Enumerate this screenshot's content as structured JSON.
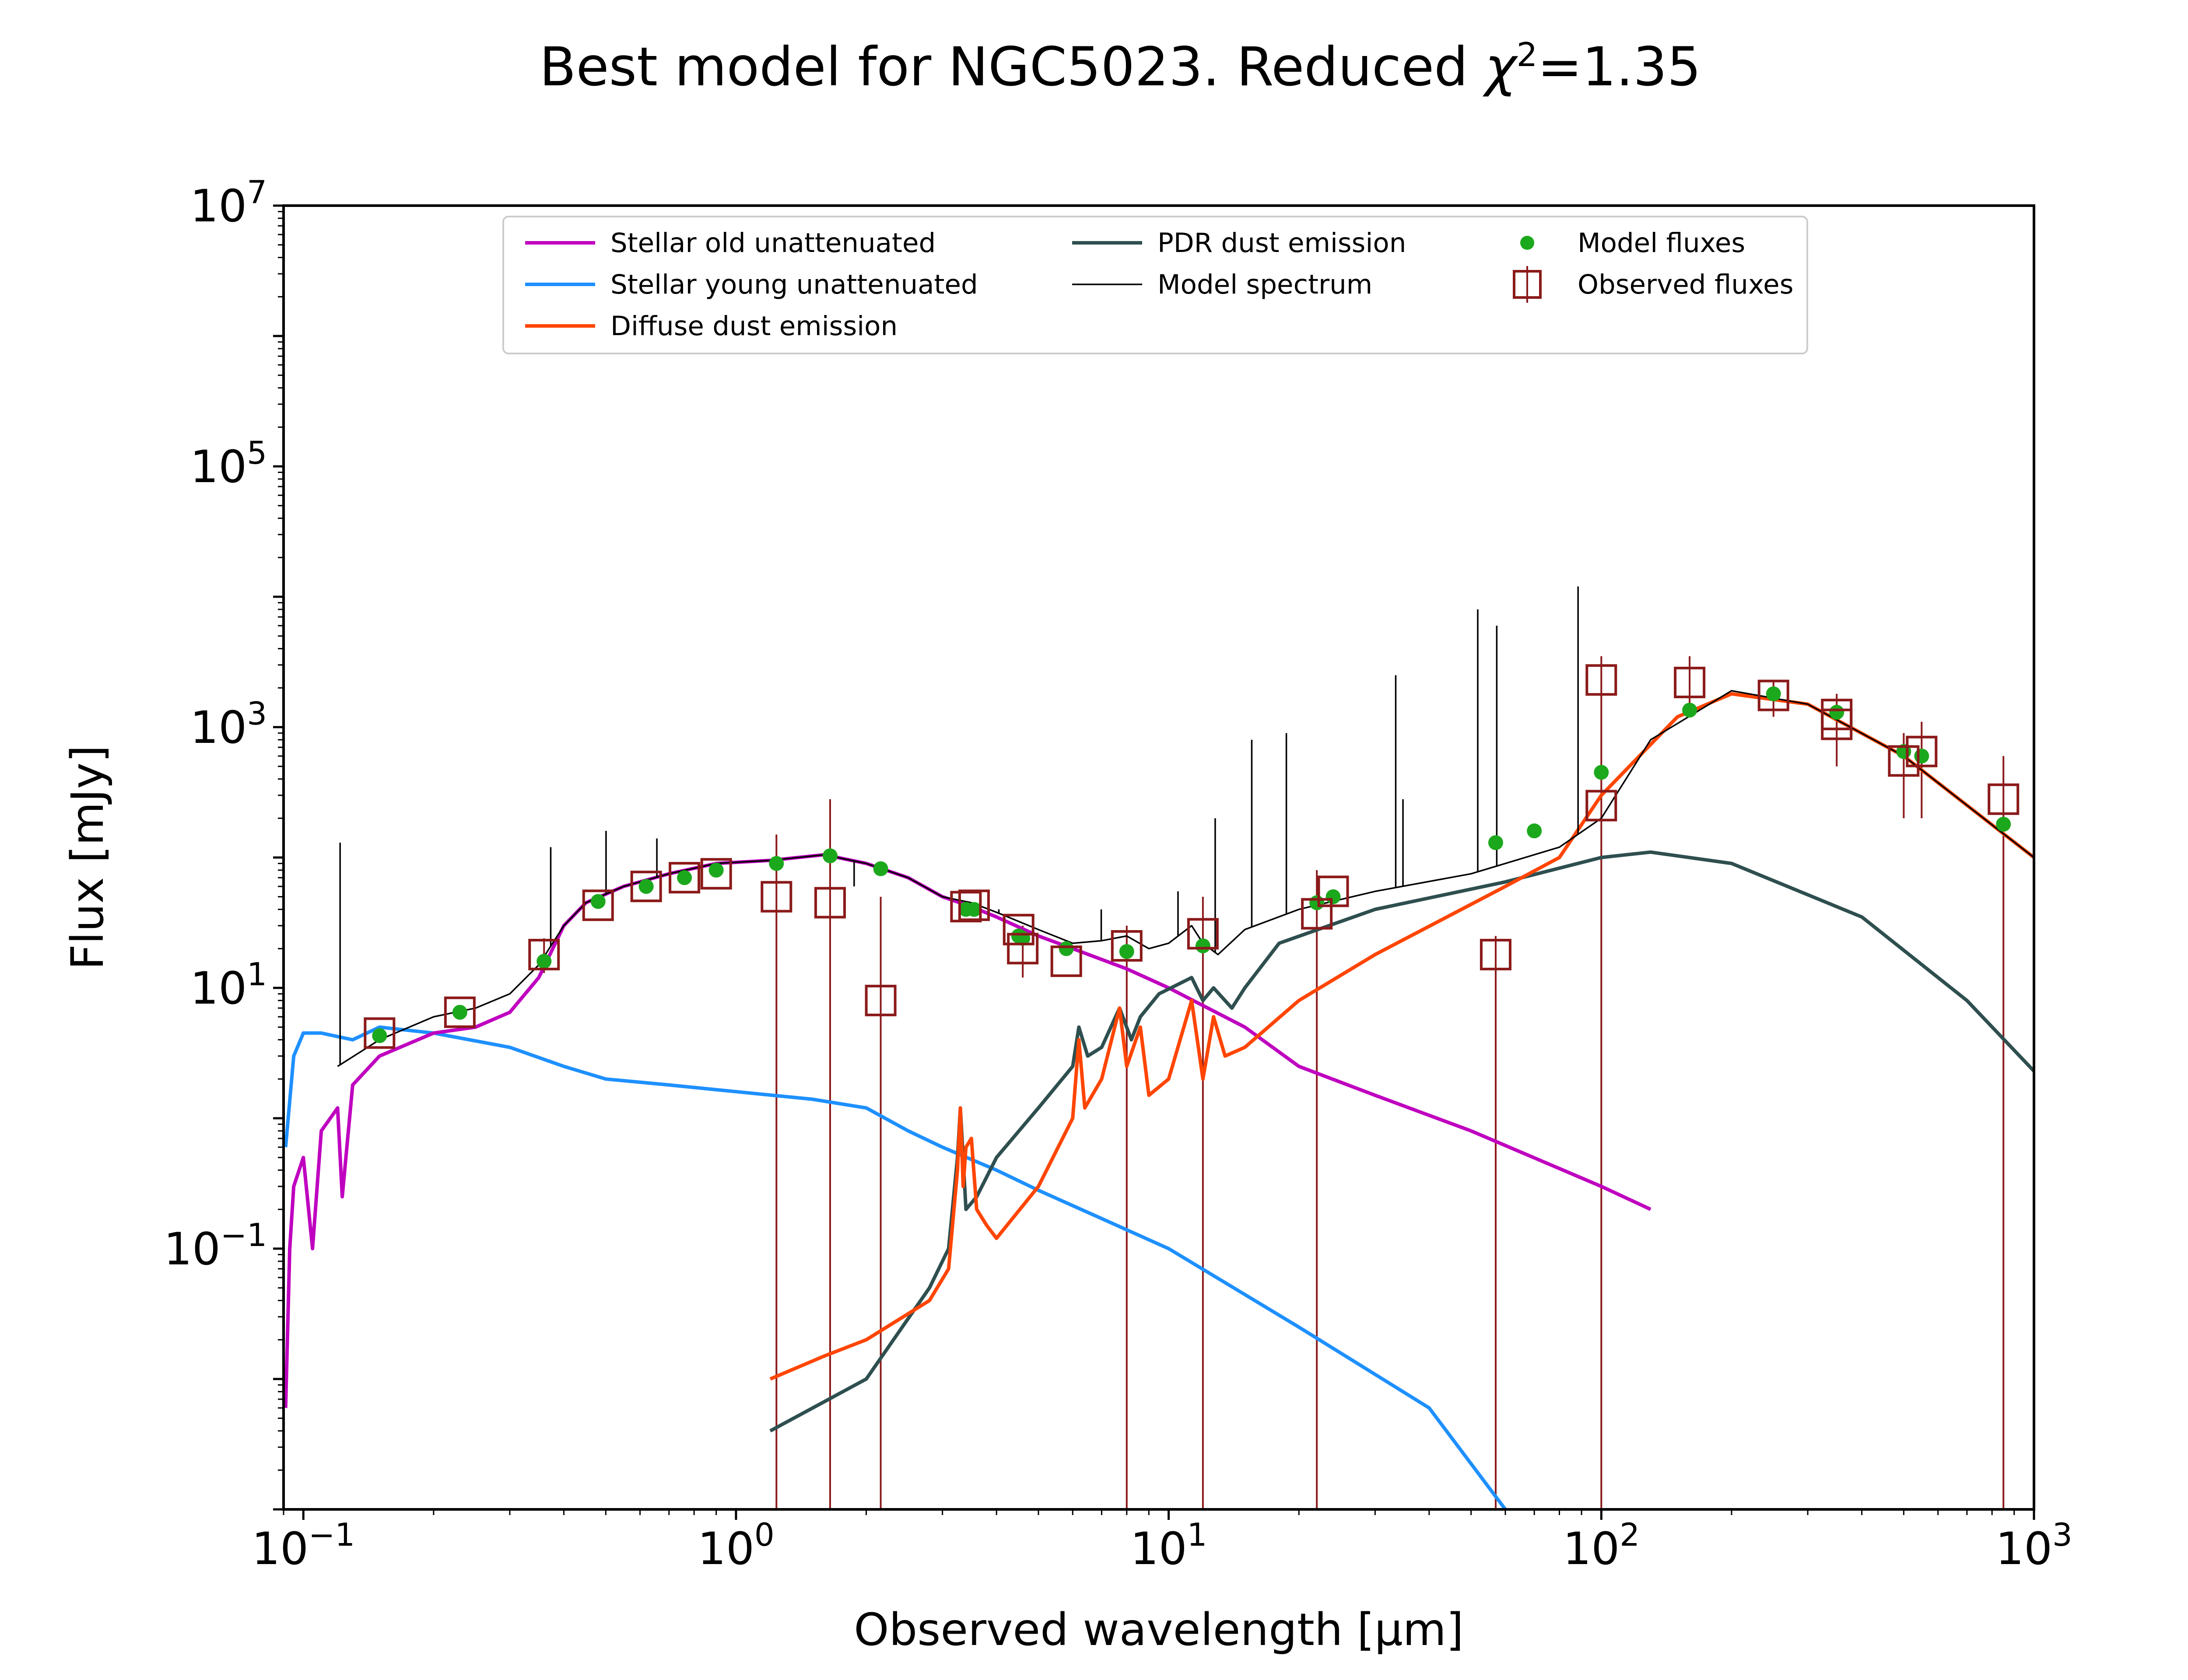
{
  "title_prefix": "Best model for NGC5023. Reduced ",
  "title_chi": "χ",
  "title_exp": "2",
  "title_suffix": "=1.35",
  "chart_data": {
    "type": "line",
    "title": "Best model for NGC5023. Reduced χ²=1.35",
    "xlabel": "Observed wavelength [μm]",
    "ylabel": "Flux [mJy]",
    "xscale": "log",
    "yscale": "log",
    "xlim": [
      0.09,
      1000
    ],
    "ylim": [
      0.001,
      10000000
    ],
    "grid": false,
    "legend_position": "top-center",
    "x_ticks": [
      {
        "value": 0.1,
        "base": "10",
        "exp": "−1"
      },
      {
        "value": 1,
        "base": "10",
        "exp": "0"
      },
      {
        "value": 10,
        "base": "10",
        "exp": "1"
      },
      {
        "value": 100,
        "base": "10",
        "exp": "2"
      },
      {
        "value": 1000,
        "base": "10",
        "exp": "3"
      }
    ],
    "y_ticks": [
      {
        "value": 0.1,
        "base": "10",
        "exp": "−1"
      },
      {
        "value": 10,
        "base": "10",
        "exp": "1"
      },
      {
        "value": 1000,
        "base": "10",
        "exp": "3"
      },
      {
        "value": 100000,
        "base": "10",
        "exp": "5"
      },
      {
        "value": 10000000,
        "base": "10",
        "exp": "7"
      }
    ],
    "series": [
      {
        "name": "Stellar old unattenuated",
        "color": "#bf00bf",
        "points": [
          [
            0.091,
            0.006
          ],
          [
            0.093,
            0.1
          ],
          [
            0.095,
            0.3
          ],
          [
            0.1,
            0.5
          ],
          [
            0.105,
            0.1
          ],
          [
            0.11,
            0.8
          ],
          [
            0.12,
            1.2
          ],
          [
            0.123,
            0.25
          ],
          [
            0.13,
            1.8
          ],
          [
            0.15,
            3
          ],
          [
            0.2,
            4.5
          ],
          [
            0.25,
            5
          ],
          [
            0.3,
            6.5
          ],
          [
            0.35,
            12
          ],
          [
            0.4,
            30
          ],
          [
            0.45,
            45
          ],
          [
            0.55,
            60
          ],
          [
            0.7,
            75
          ],
          [
            0.9,
            90
          ],
          [
            1.2,
            95
          ],
          [
            1.6,
            105
          ],
          [
            2.0,
            90
          ],
          [
            2.5,
            70
          ],
          [
            3.0,
            50
          ],
          [
            3.5,
            42
          ],
          [
            4.0,
            35
          ],
          [
            5,
            25
          ],
          [
            6,
            20
          ],
          [
            8,
            14
          ],
          [
            10,
            10
          ],
          [
            15,
            5
          ],
          [
            20,
            2.5
          ],
          [
            30,
            1.5
          ],
          [
            50,
            0.8
          ],
          [
            100,
            0.3
          ],
          [
            130,
            0.2
          ]
        ]
      },
      {
        "name": "Stellar young unattenuated",
        "color": "#1e90ff",
        "points": [
          [
            0.091,
            0.6
          ],
          [
            0.095,
            3
          ],
          [
            0.1,
            4.5
          ],
          [
            0.11,
            4.5
          ],
          [
            0.13,
            4
          ],
          [
            0.15,
            5
          ],
          [
            0.2,
            4.5
          ],
          [
            0.3,
            3.5
          ],
          [
            0.4,
            2.5
          ],
          [
            0.5,
            2
          ],
          [
            0.7,
            1.8
          ],
          [
            1.0,
            1.6
          ],
          [
            1.5,
            1.4
          ],
          [
            2.0,
            1.2
          ],
          [
            2.5,
            0.8
          ],
          [
            3.0,
            0.6
          ],
          [
            4.0,
            0.4
          ],
          [
            5,
            0.28
          ],
          [
            7,
            0.17
          ],
          [
            10,
            0.1
          ],
          [
            20,
            0.025
          ],
          [
            40,
            0.006
          ],
          [
            60,
            0.001
          ]
        ]
      },
      {
        "name": "Diffuse dust emission",
        "color": "#ff4500",
        "points": [
          [
            1.2,
            0.01
          ],
          [
            1.6,
            0.015
          ],
          [
            2.0,
            0.02
          ],
          [
            2.8,
            0.04
          ],
          [
            3.1,
            0.07
          ],
          [
            3.25,
            0.4
          ],
          [
            3.3,
            1.2
          ],
          [
            3.35,
            0.3
          ],
          [
            3.4,
            0.6
          ],
          [
            3.5,
            0.7
          ],
          [
            3.6,
            0.2
          ],
          [
            3.8,
            0.15
          ],
          [
            4.0,
            0.12
          ],
          [
            5,
            0.3
          ],
          [
            6,
            1
          ],
          [
            6.2,
            4
          ],
          [
            6.4,
            1.2
          ],
          [
            7,
            2
          ],
          [
            7.7,
            7
          ],
          [
            8,
            2.5
          ],
          [
            8.6,
            5
          ],
          [
            9,
            1.5
          ],
          [
            10,
            2
          ],
          [
            11.3,
            8
          ],
          [
            12,
            2
          ],
          [
            12.7,
            6
          ],
          [
            13.5,
            3
          ],
          [
            15,
            3.5
          ],
          [
            20,
            8
          ],
          [
            30,
            18
          ],
          [
            60,
            60
          ],
          [
            80,
            100
          ],
          [
            100,
            300
          ],
          [
            150,
            1200
          ],
          [
            200,
            1800
          ],
          [
            300,
            1500
          ],
          [
            500,
            600
          ],
          [
            1000,
            100
          ]
        ]
      },
      {
        "name": "PDR dust emission",
        "color": "#2f4f4f",
        "points": [
          [
            1.2,
            0.004
          ],
          [
            2.0,
            0.01
          ],
          [
            2.8,
            0.05
          ],
          [
            3.1,
            0.1
          ],
          [
            3.25,
            0.5
          ],
          [
            3.3,
            1.2
          ],
          [
            3.4,
            0.2
          ],
          [
            3.6,
            0.25
          ],
          [
            4.0,
            0.5
          ],
          [
            5,
            1.2
          ],
          [
            6,
            2.5
          ],
          [
            6.2,
            5
          ],
          [
            6.5,
            3
          ],
          [
            7,
            3.5
          ],
          [
            7.7,
            7
          ],
          [
            8.2,
            4
          ],
          [
            8.6,
            6
          ],
          [
            9.5,
            9
          ],
          [
            11.3,
            12
          ],
          [
            12,
            8
          ],
          [
            12.7,
            10
          ],
          [
            14,
            7
          ],
          [
            15,
            10
          ],
          [
            18,
            22
          ],
          [
            30,
            40
          ],
          [
            60,
            65
          ],
          [
            100,
            100
          ],
          [
            130,
            110
          ],
          [
            200,
            90
          ],
          [
            400,
            35
          ],
          [
            700,
            8
          ],
          [
            1000,
            2.3
          ]
        ]
      },
      {
        "name": "Model spectrum",
        "color": "#000000",
        "points": [
          [
            0.12,
            2.5
          ],
          [
            0.15,
            4
          ],
          [
            0.2,
            6
          ],
          [
            0.25,
            7
          ],
          [
            0.3,
            9
          ],
          [
            0.35,
            15
          ],
          [
            0.4,
            30
          ],
          [
            0.45,
            45
          ],
          [
            0.55,
            60
          ],
          [
            0.7,
            75
          ],
          [
            0.9,
            90
          ],
          [
            1.2,
            95
          ],
          [
            1.6,
            105
          ],
          [
            2.0,
            90
          ],
          [
            2.5,
            70
          ],
          [
            3.0,
            50
          ],
          [
            3.5,
            45
          ],
          [
            4.0,
            38
          ],
          [
            5,
            28
          ],
          [
            6,
            22
          ],
          [
            7,
            23
          ],
          [
            8,
            25
          ],
          [
            9,
            20
          ],
          [
            10,
            22
          ],
          [
            11.3,
            30
          ],
          [
            12,
            22
          ],
          [
            13,
            18
          ],
          [
            15,
            28
          ],
          [
            20,
            40
          ],
          [
            30,
            55
          ],
          [
            50,
            75
          ],
          [
            80,
            120
          ],
          [
            100,
            200
          ],
          [
            130,
            800
          ],
          [
            200,
            1900
          ],
          [
            300,
            1500
          ],
          [
            500,
            600
          ],
          [
            1000,
            100
          ]
        ]
      },
      {
        "name": "Model fluxes",
        "color": "#1ca81c",
        "points": [
          [
            0.15,
            4.3
          ],
          [
            0.23,
            6.5
          ],
          [
            0.36,
            16
          ],
          [
            0.48,
            46
          ],
          [
            0.62,
            60
          ],
          [
            0.76,
            70
          ],
          [
            0.9,
            80
          ],
          [
            1.24,
            90
          ],
          [
            1.65,
            103
          ],
          [
            2.16,
            82
          ],
          [
            3.4,
            40
          ],
          [
            3.55,
            40
          ],
          [
            4.5,
            25
          ],
          [
            4.6,
            24
          ],
          [
            5.8,
            20
          ],
          [
            8,
            19
          ],
          [
            12,
            21
          ],
          [
            22,
            45
          ],
          [
            24,
            50
          ],
          [
            57,
            130
          ],
          [
            70,
            160
          ],
          [
            100,
            450
          ],
          [
            160,
            1350
          ],
          [
            250,
            1800
          ],
          [
            350,
            1300
          ],
          [
            500,
            650
          ],
          [
            550,
            600
          ],
          [
            850,
            180
          ]
        ]
      },
      {
        "name": "Observed fluxes",
        "color": "#8b1a1a",
        "points": [
          [
            0.15,
            4.5
          ],
          [
            0.23,
            6.5
          ],
          [
            0.36,
            18
          ],
          [
            0.48,
            43
          ],
          [
            0.62,
            60
          ],
          [
            0.76,
            70
          ],
          [
            0.9,
            75
          ],
          [
            1.24,
            50
          ],
          [
            1.65,
            45
          ],
          [
            2.16,
            8
          ],
          [
            3.4,
            42
          ],
          [
            3.55,
            43
          ],
          [
            4.5,
            28
          ],
          [
            4.6,
            20
          ],
          [
            5.8,
            16
          ],
          [
            8,
            21
          ],
          [
            12,
            26
          ],
          [
            22,
            37
          ],
          [
            24,
            55
          ],
          [
            57,
            18
          ],
          [
            100,
            2300
          ],
          [
            100,
            250
          ],
          [
            160,
            2200
          ],
          [
            250,
            1750
          ],
          [
            350,
            1250
          ],
          [
            350,
            1050
          ],
          [
            500,
            550
          ],
          [
            550,
            650
          ],
          [
            850,
            280
          ]
        ]
      }
    ],
    "observed_errorbars": [
      [
        0.36,
        [
          13,
          24
        ]
      ],
      [
        1.24,
        [
          0.001,
          150
        ]
      ],
      [
        1.65,
        [
          0.001,
          280
        ]
      ],
      [
        2.16,
        [
          0.001,
          50
        ]
      ],
      [
        4.6,
        [
          12,
          30
        ]
      ],
      [
        8,
        [
          0.001,
          30
        ]
      ],
      [
        12,
        [
          0.001,
          50
        ]
      ],
      [
        22,
        [
          0.001,
          80
        ]
      ],
      [
        57,
        [
          0.001,
          25
        ]
      ],
      [
        100,
        [
          0.001,
          3500
        ]
      ],
      [
        160,
        [
          1200,
          3500
        ]
      ],
      [
        250,
        [
          1200,
          2300
        ]
      ],
      [
        350,
        [
          500,
          1800
        ]
      ],
      [
        500,
        [
          200,
          900
        ]
      ],
      [
        550,
        [
          200,
          1100
        ]
      ],
      [
        850,
        [
          0.001,
          600
        ]
      ]
    ],
    "emission_lines": [
      [
        0.1216,
        130
      ],
      [
        0.373,
        120
      ],
      [
        0.5007,
        160
      ],
      [
        0.6563,
        140
      ],
      [
        1.875,
        60
      ],
      [
        4.05,
        40
      ],
      [
        6.985,
        40
      ],
      [
        10.51,
        55
      ],
      [
        12.81,
        200
      ],
      [
        15.56,
        800
      ],
      [
        18.71,
        900
      ],
      [
        33.48,
        2500
      ],
      [
        34.8,
        280
      ],
      [
        51.81,
        8000
      ],
      [
        57.32,
        6000
      ],
      [
        88.36,
        12000
      ]
    ]
  }
}
